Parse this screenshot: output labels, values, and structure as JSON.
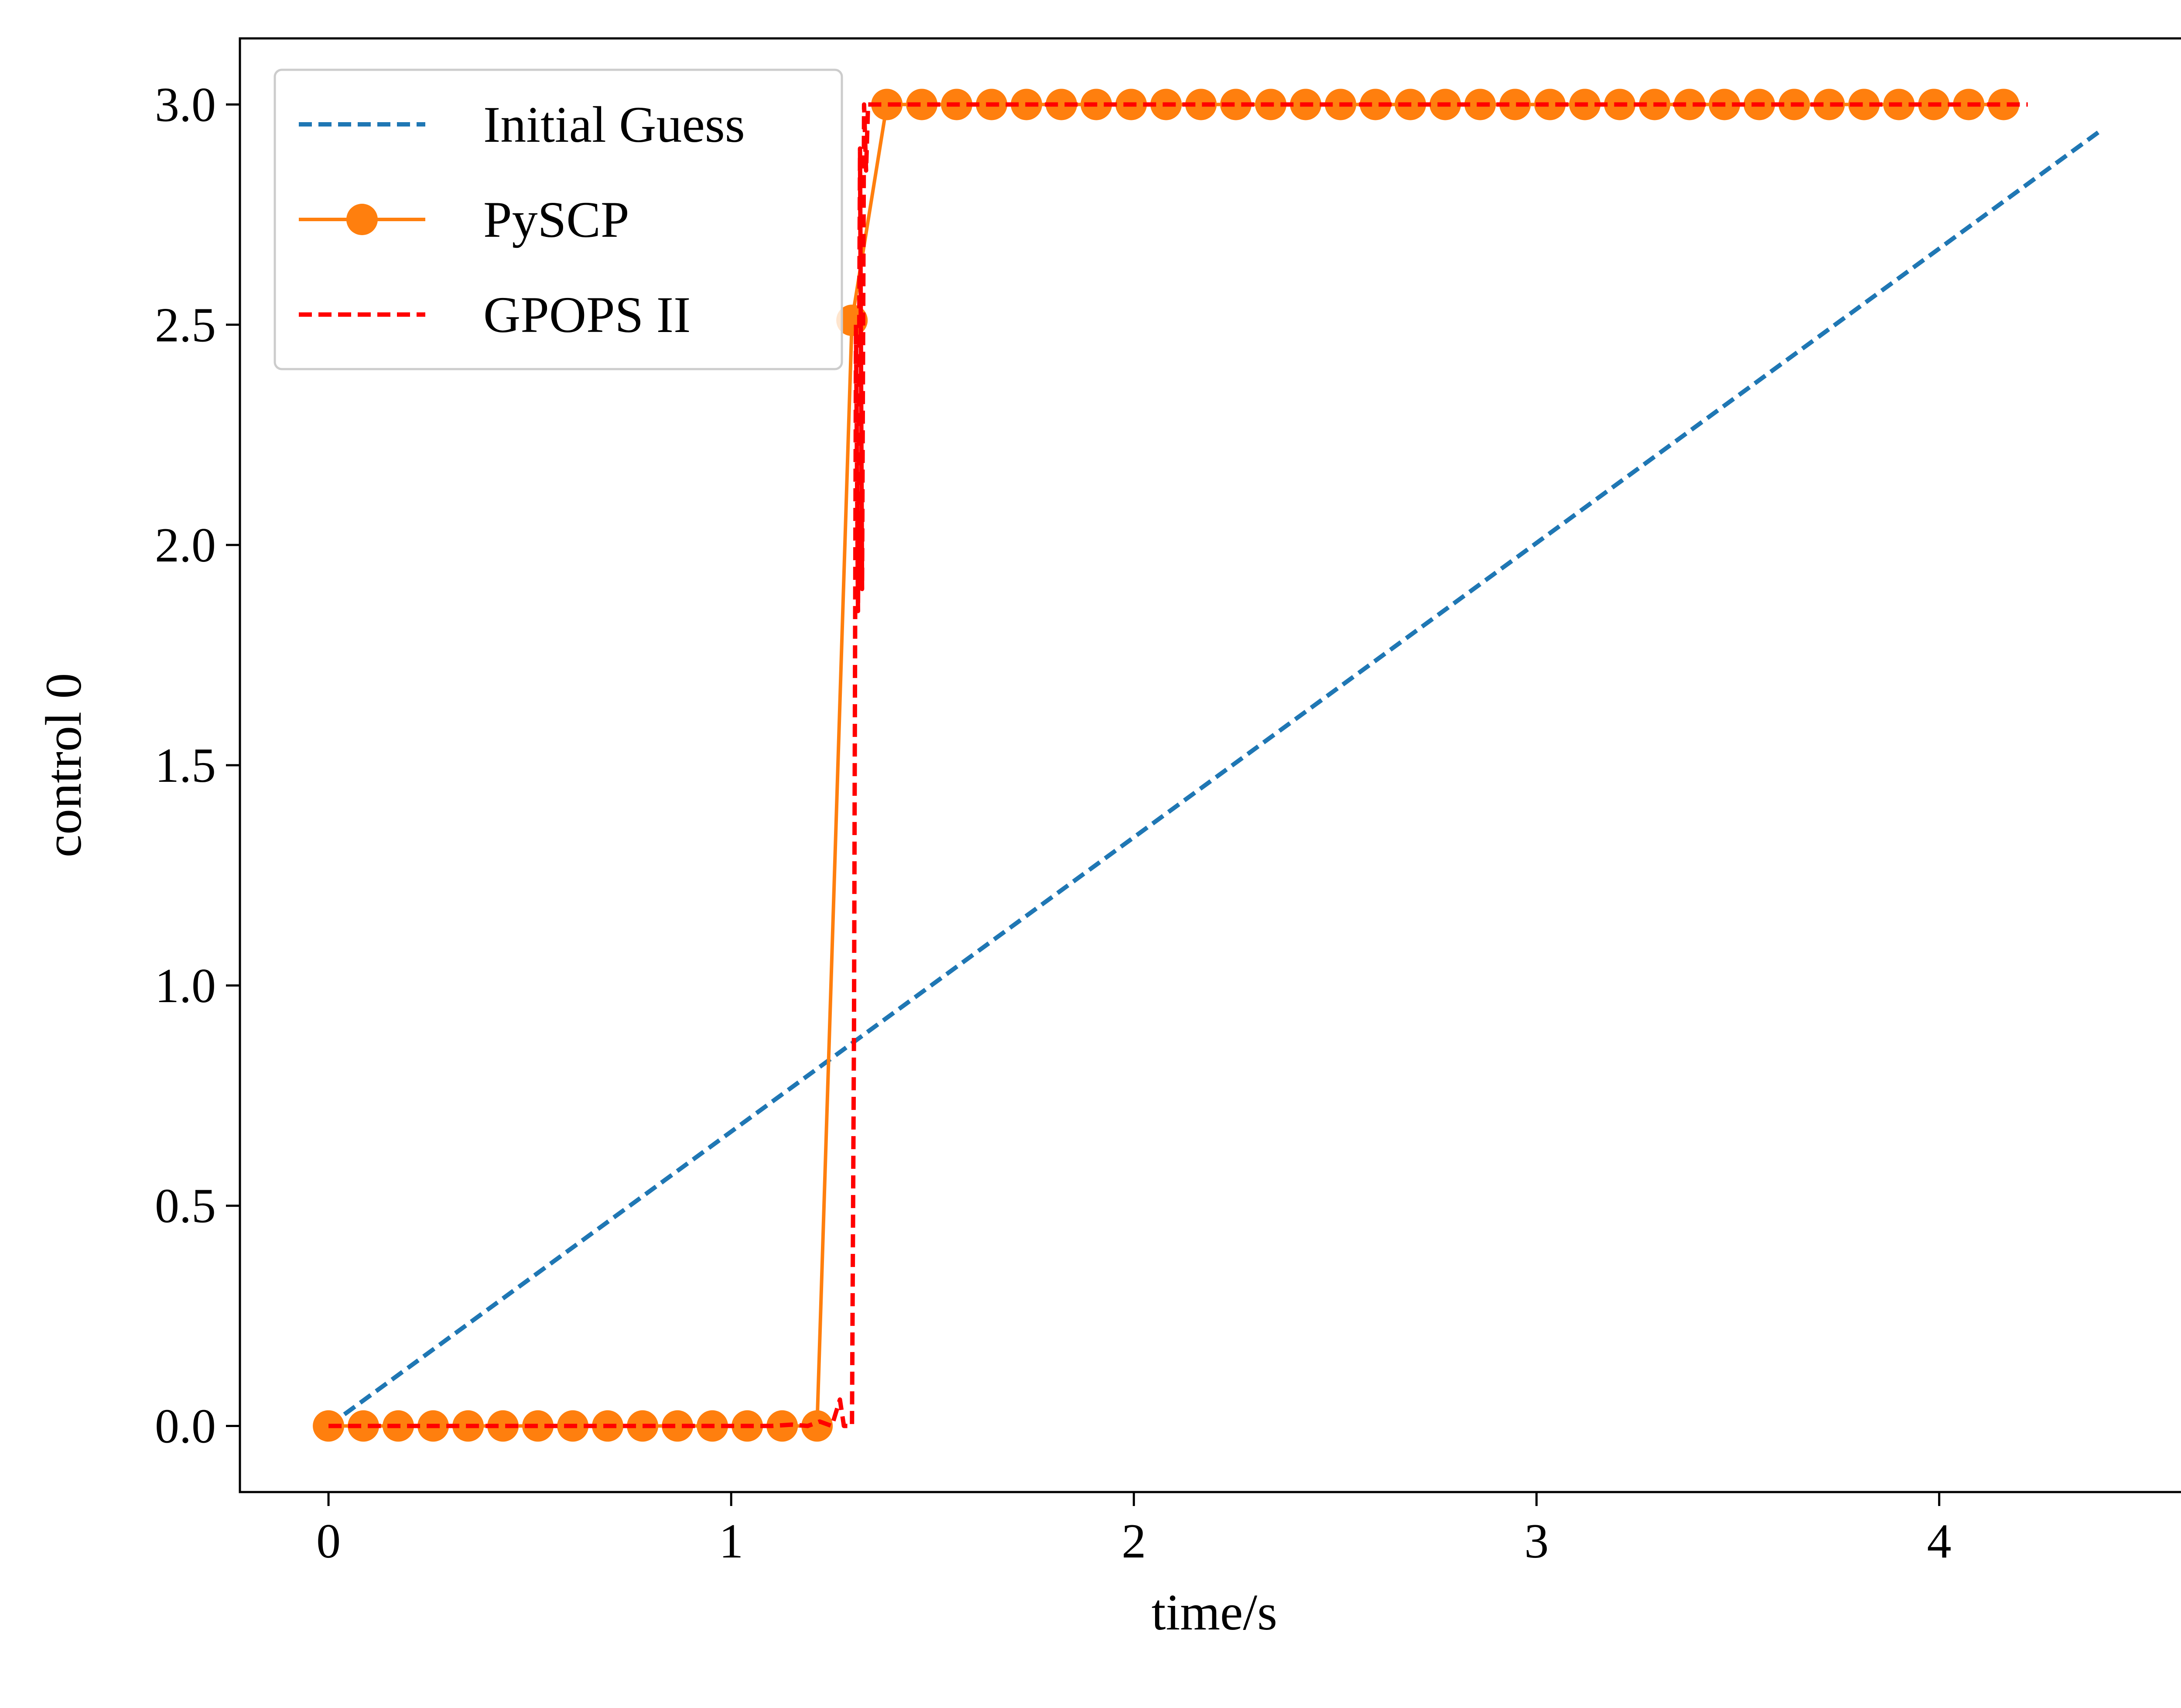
{
  "chart_data": {
    "type": "line",
    "title": "",
    "xlabel": "time/s",
    "ylabel": "control 0",
    "xlim": [
      -0.22,
      4.62
    ],
    "ylim": [
      -0.15,
      3.15
    ],
    "x_ticks": [
      0,
      1,
      2,
      3,
      4
    ],
    "x_tick_labels": [
      "0",
      "1",
      "2",
      "3",
      "4"
    ],
    "y_ticks": [
      0.0,
      0.5,
      1.0,
      1.5,
      2.0,
      2.5,
      3.0
    ],
    "y_tick_labels": [
      "0.0",
      "0.5",
      "1.0",
      "1.5",
      "2.0",
      "2.5",
      "3.0"
    ],
    "grid": false,
    "legend_position": "upper-left",
    "series": [
      {
        "name": "Initial Guess",
        "color": "#1f77b4",
        "style": "dashed",
        "marker": "none",
        "x": [
          0.0,
          4.4
        ],
        "y": [
          0.0,
          2.94
        ]
      },
      {
        "name": "PySCP",
        "color": "#ff7f0e",
        "style": "solid",
        "marker": "circle",
        "x": [
          0.0,
          0.0867,
          0.1733,
          0.26,
          0.3467,
          0.4333,
          0.52,
          0.6067,
          0.6933,
          0.78,
          0.8667,
          0.9533,
          1.04,
          1.1267,
          1.2133,
          1.3,
          1.3867,
          1.4733,
          1.56,
          1.6467,
          1.7333,
          1.82,
          1.9067,
          1.9933,
          2.08,
          2.1667,
          2.2533,
          2.34,
          2.4267,
          2.5133,
          2.6,
          2.6867,
          2.7733,
          2.86,
          2.9467,
          3.0333,
          3.12,
          3.2067,
          3.2933,
          3.38,
          3.4667,
          3.5533,
          3.64,
          3.7267,
          3.8133,
          3.9,
          3.9867,
          4.0733,
          4.16
        ],
        "y": [
          0.0,
          0.0,
          0.0,
          0.0,
          0.0,
          0.0,
          0.0,
          0.0,
          0.0,
          0.0,
          0.0,
          0.0,
          0.0,
          0.0,
          0.0,
          2.51,
          3.0,
          3.0,
          3.0,
          3.0,
          3.0,
          3.0,
          3.0,
          3.0,
          3.0,
          3.0,
          3.0,
          3.0,
          3.0,
          3.0,
          3.0,
          3.0,
          3.0,
          3.0,
          3.0,
          3.0,
          3.0,
          3.0,
          3.0,
          3.0,
          3.0,
          3.0,
          3.0,
          3.0,
          3.0,
          3.0,
          3.0,
          3.0,
          3.0
        ]
      },
      {
        "name": "GPOPS II",
        "color": "#ff0000",
        "style": "dashed",
        "marker": "none",
        "x": [
          0.0,
          1.1,
          1.15,
          1.19,
          1.22,
          1.25,
          1.27,
          1.28,
          1.29,
          1.3,
          1.305,
          1.31,
          1.315,
          1.32,
          1.325,
          1.33,
          1.335,
          1.34,
          1.35,
          1.4,
          4.22
        ],
        "y": [
          0.0,
          0.0,
          0.003,
          0.0,
          0.01,
          0.0,
          0.06,
          0.0,
          0.0,
          0.0,
          0.9,
          2.5,
          1.85,
          2.9,
          1.9,
          3.0,
          2.85,
          3.0,
          3.0,
          3.0,
          3.0
        ]
      }
    ]
  }
}
